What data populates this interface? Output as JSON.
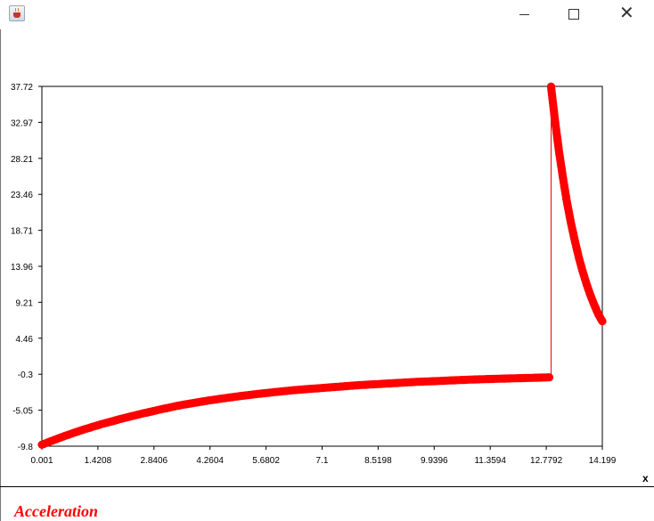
{
  "window": {
    "title": "",
    "icon": "java-cup-icon",
    "controls": [
      "minimize-icon",
      "maximize-icon",
      "close-icon"
    ],
    "close_glyph": "✕"
  },
  "panel": {
    "close_label": "x",
    "title": "Acceleration",
    "title_color": "#ff0000"
  },
  "chart_data": {
    "type": "scatter",
    "title": "",
    "xlabel": "",
    "ylabel": "",
    "color": "#ff0000",
    "xlim": [
      0.001,
      14.199
    ],
    "ylim": [
      -9.8,
      37.72
    ],
    "grid": false,
    "x_ticks": [
      "0.001",
      "1.4208",
      "2.8406",
      "4.2604",
      "5.6802",
      "7.1",
      "8.5198",
      "9.9396",
      "11.3594",
      "12.7792",
      "14.199"
    ],
    "y_ticks": [
      "-9.8",
      "-5.05",
      "-0.3",
      "4.46",
      "9.21",
      "13.96",
      "18.71",
      "23.46",
      "28.21",
      "32.97",
      "37.72"
    ],
    "series": [
      {
        "x": [
          0.001,
          0.5,
          1.0,
          1.5,
          2.0,
          2.5,
          3.0,
          3.5,
          4.0,
          4.5,
          5.0,
          5.5,
          6.0,
          6.5,
          7.0,
          7.5,
          8.0,
          8.5,
          9.0,
          9.5,
          10.0,
          10.5,
          11.0,
          11.5,
          12.0,
          12.5,
          12.9,
          12.9,
          13.0,
          13.1,
          13.2,
          13.3,
          13.4,
          13.5,
          13.6,
          13.7,
          13.8,
          13.9,
          14.0,
          14.1,
          14.199
        ],
        "y": [
          -9.6,
          -8.6,
          -7.7,
          -6.9,
          -6.2,
          -5.55,
          -4.95,
          -4.4,
          -3.95,
          -3.55,
          -3.2,
          -2.88,
          -2.6,
          -2.35,
          -2.15,
          -1.95,
          -1.75,
          -1.6,
          -1.45,
          -1.3,
          -1.2,
          -1.08,
          -0.98,
          -0.9,
          -0.83,
          -0.76,
          -0.7,
          37.7,
          33.2,
          29.2,
          25.7,
          22.5,
          19.8,
          17.4,
          15.2,
          13.3,
          11.6,
          10.1,
          8.8,
          7.6,
          6.7
        ]
      }
    ]
  }
}
